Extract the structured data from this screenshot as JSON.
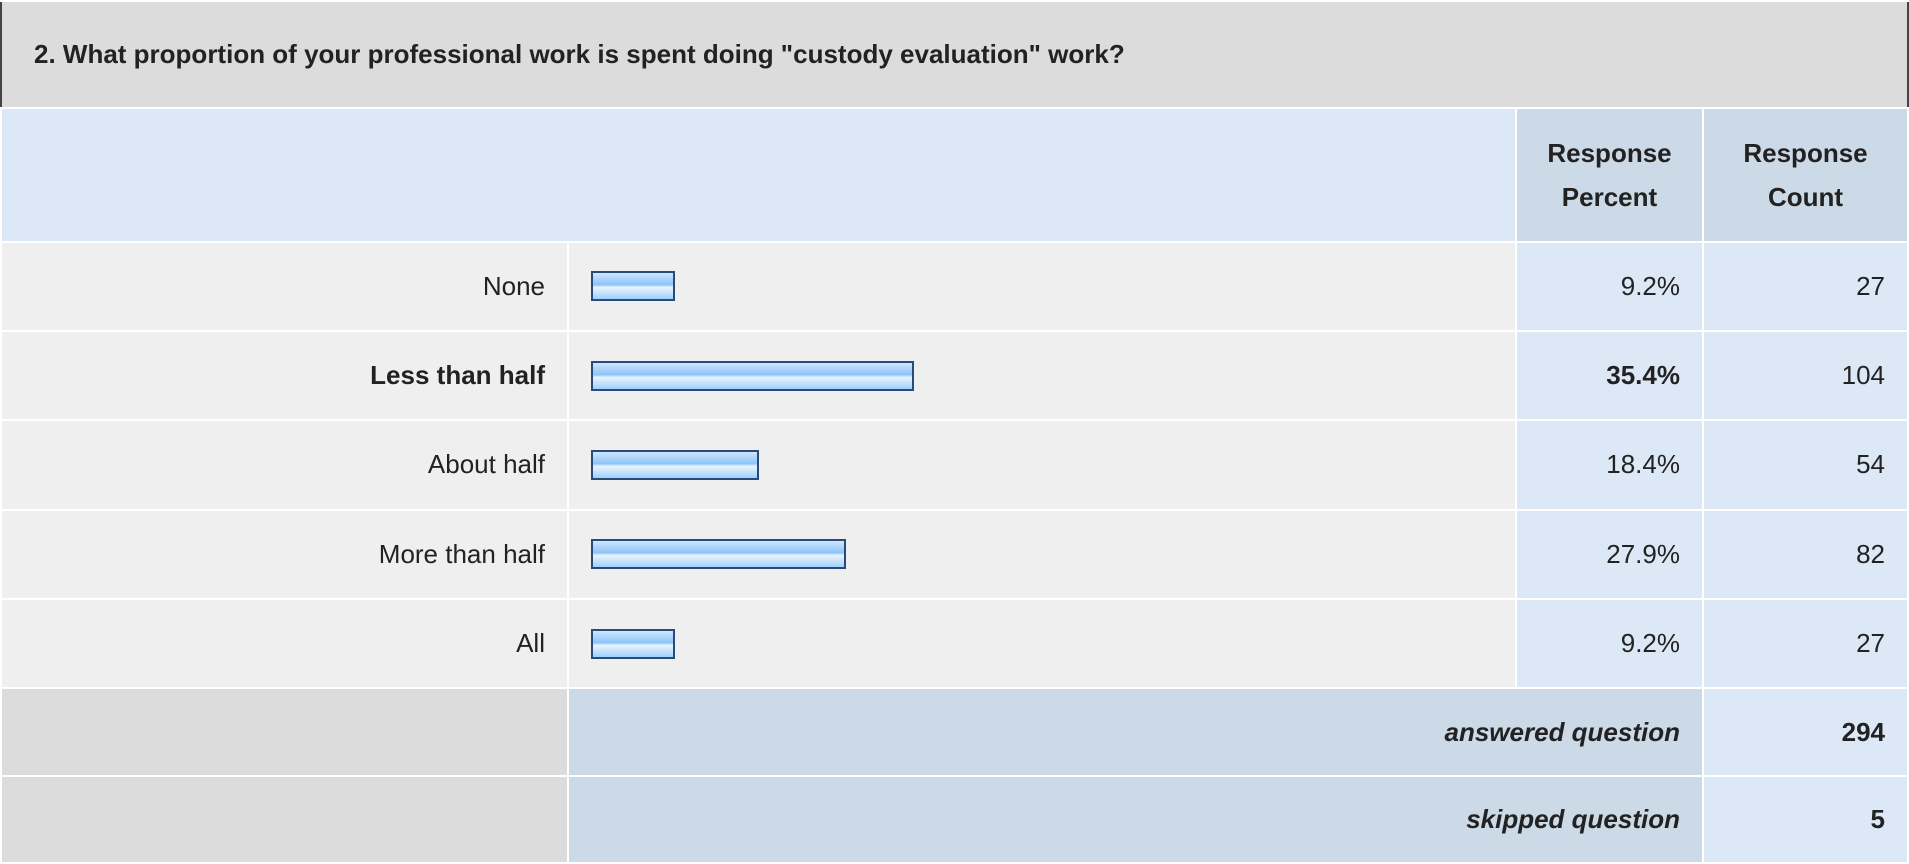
{
  "title": "2. What proportion of your professional work is spent doing \"custody evaluation\" work?",
  "header": {
    "percent": [
      "Response",
      "Percent"
    ],
    "count": [
      "Response",
      "Count"
    ]
  },
  "rows": [
    {
      "label": "None",
      "percent": 9.2,
      "percent_label": "9.2%",
      "count": 27,
      "bold": false
    },
    {
      "label": "Less than half",
      "percent": 35.4,
      "percent_label": "35.4%",
      "count": 104,
      "bold": true
    },
    {
      "label": "About half",
      "percent": 18.4,
      "percent_label": "18.4%",
      "count": 54,
      "bold": false
    },
    {
      "label": "More than half",
      "percent": 27.9,
      "percent_label": "27.9%",
      "count": 82,
      "bold": false
    },
    {
      "label": "All",
      "percent": 9.2,
      "percent_label": "9.2%",
      "count": 27,
      "bold": false
    }
  ],
  "footer": [
    {
      "label": "answered question",
      "count": 294
    },
    {
      "label": "skipped question",
      "count": 5
    }
  ]
}
